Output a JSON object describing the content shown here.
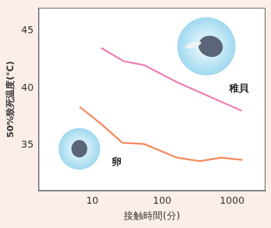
{
  "chart_data": {
    "type": "line",
    "x_label": "接触時間(分)",
    "y_label": "50%致死温度(℃)",
    "log": "x",
    "xlim": [
      1.7,
      3000
    ],
    "xticks": [
      10,
      100,
      1000
    ],
    "ylim": [
      31,
      47
    ],
    "yticks": [
      35,
      40,
      45
    ],
    "grid": false,
    "series": [
      {
        "name": "稚貝",
        "color": "#ee7fb6",
        "x": [
          13.4,
          27.8,
          55,
          163,
          1375
        ],
        "values": [
          43.5,
          42.35,
          42.0,
          40.5,
          38.0
        ]
      },
      {
        "name": "卵",
        "color": "#f28a5e",
        "x": [
          6.6,
          13.7,
          27,
          55,
          163,
          345,
          700,
          1400
        ],
        "values": [
          38.35,
          36.8,
          35.2,
          35.1,
          33.9,
          33.6,
          33.9,
          33.7
        ]
      }
    ]
  }
}
